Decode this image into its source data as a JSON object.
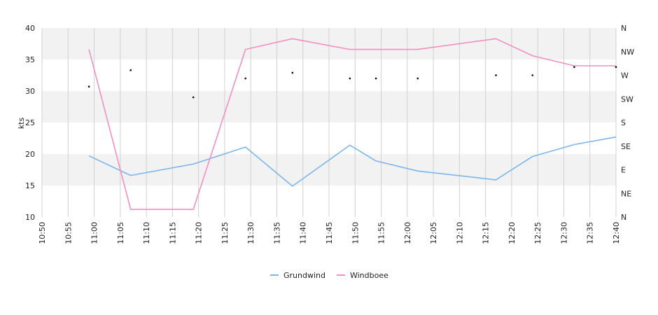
{
  "chart_data": {
    "type": "line",
    "ylabel": "kts",
    "ylim": [
      10,
      40
    ],
    "yticks": [
      10,
      15,
      20,
      25,
      30,
      35,
      40
    ],
    "xlim": [
      "10:50",
      "12:40"
    ],
    "xticks": [
      "10:50",
      "10:55",
      "11:00",
      "11:05",
      "11:10",
      "11:15",
      "11:20",
      "11:25",
      "11:30",
      "11:35",
      "11:40",
      "11:45",
      "11:50",
      "11:55",
      "12:00",
      "12:05",
      "12:10",
      "12:15",
      "12:20",
      "12:25",
      "12:30",
      "12:35",
      "12:40"
    ],
    "direction_axis": {
      "labels": [
        "N",
        "NE",
        "E",
        "SE",
        "S",
        "SW",
        "W",
        "NW",
        "N"
      ]
    },
    "series": [
      {
        "name": "Grundwind",
        "color": "#7cb5ec",
        "points": [
          {
            "x": "10:59",
            "y": 19.7
          },
          {
            "x": "11:07",
            "y": 16.6
          },
          {
            "x": "11:19",
            "y": 18.4
          },
          {
            "x": "11:29",
            "y": 21.1
          },
          {
            "x": "11:38",
            "y": 14.9
          },
          {
            "x": "11:49",
            "y": 21.4
          },
          {
            "x": "11:54",
            "y": 18.9
          },
          {
            "x": "12:02",
            "y": 17.3
          },
          {
            "x": "12:17",
            "y": 15.9
          },
          {
            "x": "12:24",
            "y": 19.6
          },
          {
            "x": "12:32",
            "y": 21.5
          },
          {
            "x": "12:40",
            "y": 22.7
          }
        ]
      },
      {
        "name": "Windboee",
        "color": "#f28fbf",
        "points": [
          {
            "x": "10:59",
            "y": 36.6
          },
          {
            "x": "11:07",
            "y": 11.2
          },
          {
            "x": "11:19",
            "y": 11.2
          },
          {
            "x": "11:29",
            "y": 36.6
          },
          {
            "x": "11:38",
            "y": 38.3
          },
          {
            "x": "11:49",
            "y": 36.6
          },
          {
            "x": "11:54",
            "y": 36.6
          },
          {
            "x": "12:02",
            "y": 36.6
          },
          {
            "x": "12:17",
            "y": 38.3
          },
          {
            "x": "12:24",
            "y": 35.6
          },
          {
            "x": "12:32",
            "y": 34.0
          },
          {
            "x": "12:40",
            "y": 34.0
          }
        ]
      }
    ],
    "direction_points": [
      {
        "x": "10:59",
        "y": 30.7
      },
      {
        "x": "11:07",
        "y": 33.3
      },
      {
        "x": "11:19",
        "y": 29.0
      },
      {
        "x": "11:29",
        "y": 32.0
      },
      {
        "x": "11:38",
        "y": 32.9
      },
      {
        "x": "11:49",
        "y": 32.0
      },
      {
        "x": "11:54",
        "y": 32.0
      },
      {
        "x": "12:02",
        "y": 32.0
      },
      {
        "x": "12:17",
        "y": 32.5
      },
      {
        "x": "12:24",
        "y": 32.5
      },
      {
        "x": "12:32",
        "y": 33.8
      },
      {
        "x": "12:40",
        "y": 33.8
      }
    ],
    "grid": true,
    "legend": "bottom-center"
  }
}
